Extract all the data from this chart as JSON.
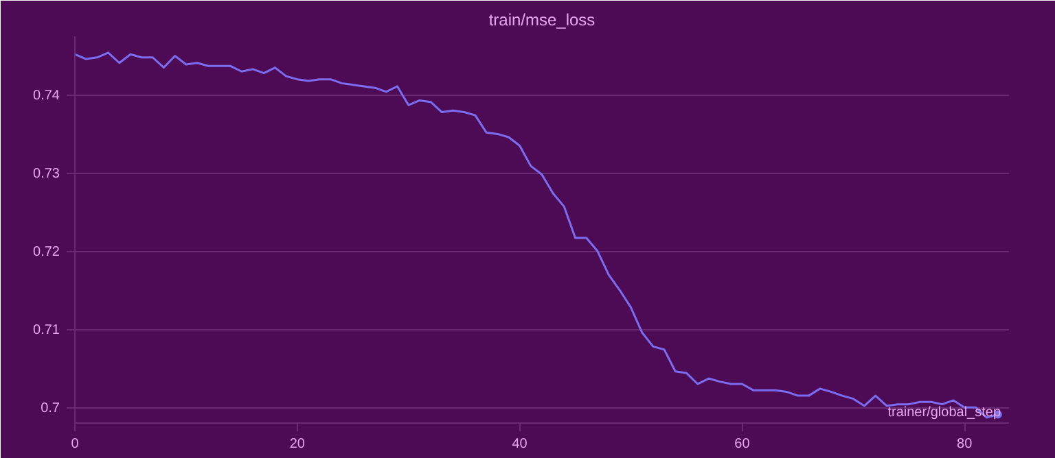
{
  "chart_data": {
    "type": "line",
    "title": "train/mse_loss",
    "xlabel": "trainer/global_step",
    "x": [
      0,
      1,
      2,
      3,
      4,
      5,
      6,
      7,
      8,
      9,
      10,
      11,
      12,
      13,
      14,
      15,
      16,
      17,
      18,
      19,
      20,
      21,
      22,
      23,
      24,
      25,
      26,
      27,
      28,
      29,
      30,
      31,
      32,
      33,
      34,
      35,
      36,
      37,
      38,
      39,
      40,
      41,
      42,
      43,
      44,
      45,
      46,
      47,
      48,
      49,
      50,
      51,
      52,
      53,
      54,
      55,
      56,
      57,
      58,
      59,
      60,
      61,
      62,
      63,
      64,
      65,
      66,
      67,
      68,
      69,
      70,
      71,
      72,
      73,
      74,
      75,
      76,
      77,
      78,
      79,
      80,
      81,
      82,
      83
    ],
    "series": [
      {
        "color": "#7b6cf0",
        "values": [
          0.7452,
          0.7446,
          0.7448,
          0.7454,
          0.7441,
          0.7452,
          0.7448,
          0.7448,
          0.7435,
          0.745,
          0.7439,
          0.7441,
          0.7437,
          0.7437,
          0.7437,
          0.743,
          0.7433,
          0.7428,
          0.7435,
          0.7424,
          0.742,
          0.7418,
          0.742,
          0.742,
          0.7415,
          0.7413,
          0.7411,
          0.7409,
          0.7404,
          0.7411,
          0.7387,
          0.7393,
          0.7391,
          0.7378,
          0.738,
          0.7378,
          0.7374,
          0.7352,
          0.735,
          0.7346,
          0.7335,
          0.7309,
          0.7298,
          0.7274,
          0.7257,
          0.7217,
          0.7217,
          0.72,
          0.717,
          0.715,
          0.7128,
          0.7096,
          0.7078,
          0.7074,
          0.7046,
          0.7044,
          0.703,
          0.7037,
          0.7033,
          0.703,
          0.703,
          0.7022,
          0.7022,
          0.7022,
          0.702,
          0.7015,
          0.7015,
          0.7024,
          0.702,
          0.7015,
          0.7011,
          0.7002,
          0.7015,
          0.7002,
          0.7004,
          0.7004,
          0.7007,
          0.7007,
          0.7004,
          0.7009,
          0.7,
          0.7,
          0.6987,
          0.6991
        ]
      }
    ],
    "xlim": [
      0,
      84
    ],
    "xticks": [
      0,
      20,
      40,
      60,
      80
    ],
    "ylim": [
      0.698,
      0.7475
    ],
    "yticks": [
      0.7,
      0.71,
      0.72,
      0.73,
      0.74
    ],
    "grid": "y",
    "marker": "none",
    "line_style": "solid"
  }
}
